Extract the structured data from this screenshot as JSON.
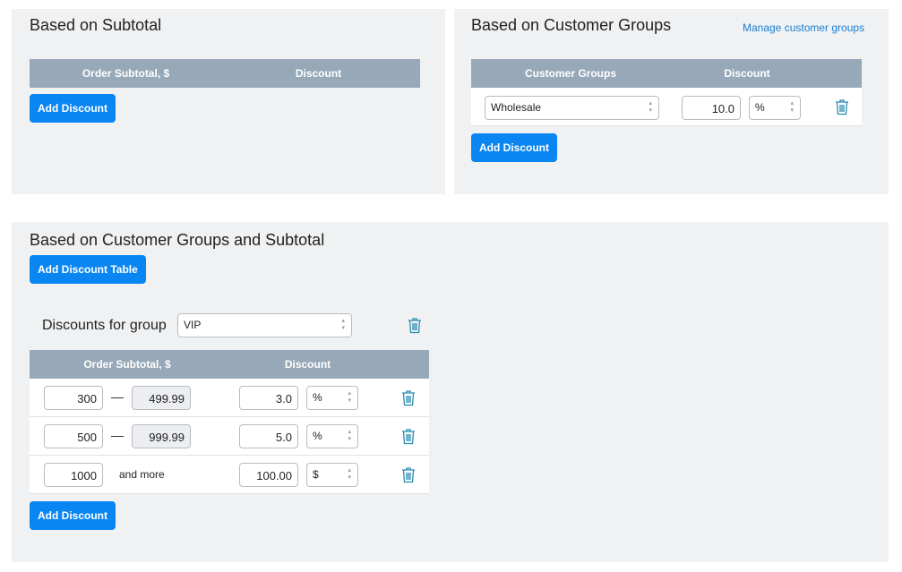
{
  "subtotal": {
    "title": "Based on Subtotal",
    "col_subtotal": "Order Subtotal, $",
    "col_discount": "Discount",
    "add_button": "Add Discount"
  },
  "groups": {
    "title": "Based on Customer Groups",
    "manage_link": "Manage customer groups",
    "col_groups": "Customer Groups",
    "col_discount": "Discount",
    "rows": [
      {
        "group": "Wholesale",
        "value": "10.0",
        "unit": "%"
      }
    ],
    "add_button": "Add Discount"
  },
  "combined": {
    "title": "Based on Customer Groups and Subtotal",
    "add_table_button": "Add Discount Table",
    "group_label": "Discounts for group",
    "group_value": "VIP",
    "col_subtotal": "Order Subtotal, $",
    "col_discount": "Discount",
    "rows": [
      {
        "from": "300",
        "to": "499.99",
        "value": "3.0",
        "unit": "%"
      },
      {
        "from": "500",
        "to": "999.99",
        "value": "5.0",
        "unit": "%"
      },
      {
        "from": "1000",
        "to_text": "and more",
        "value": "100.00",
        "unit": "$"
      }
    ],
    "add_button": "Add Discount"
  },
  "colors": {
    "accent": "#0a86f2",
    "header": "#97a8b8",
    "icon": "#2a8bb0"
  }
}
